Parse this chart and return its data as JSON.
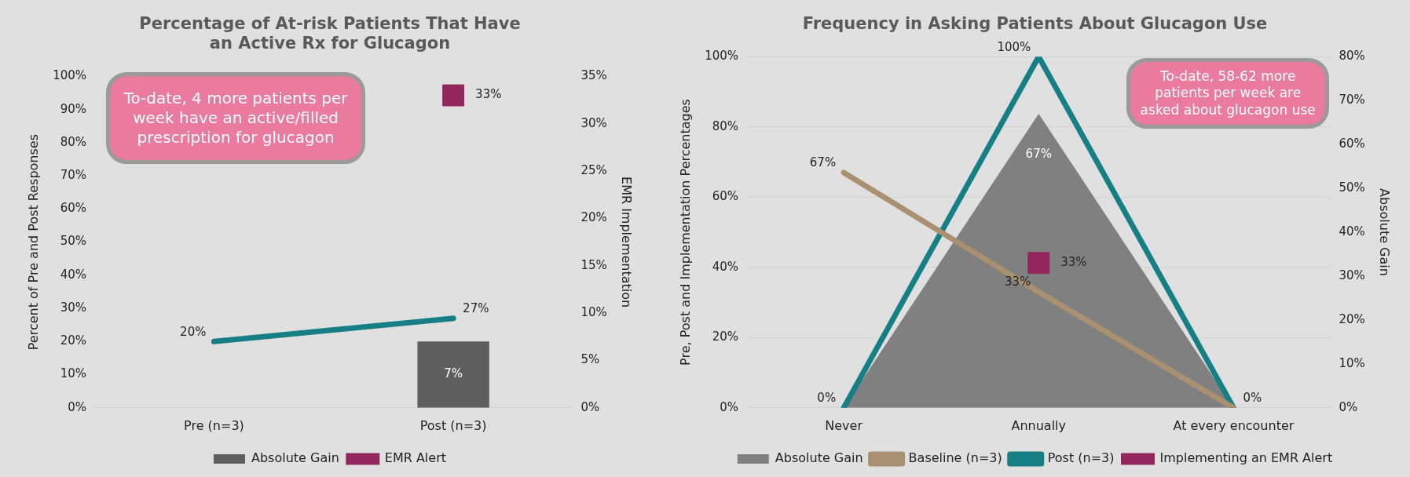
{
  "chart_data": [
    {
      "type": "bar",
      "title": "Percentage of At-risk Patients That Have an Active Rx for Glucagon",
      "ylabel": "Percent of Pre and Post Responses",
      "y2label": "EMR Implementation",
      "categories": [
        "Pre (n=3)",
        "Post (n=3)"
      ],
      "series": [
        {
          "name": "Absolute Gain",
          "axis": "y2",
          "color": "#5f5f5f",
          "values": [
            null,
            7
          ],
          "value_labels": [
            null,
            "7%"
          ]
        },
        {
          "type": "line",
          "color": "#167f86",
          "values": [
            20,
            27
          ],
          "value_labels": [
            "20%",
            "27%"
          ]
        },
        {
          "name": "EMR Alert",
          "type": "scatter",
          "marker": "square",
          "axis": "y2",
          "color": "#93265c",
          "values": [
            null,
            33
          ],
          "value_labels": [
            null,
            "33%"
          ]
        }
      ],
      "ylim": [
        0,
        100
      ],
      "yticks": [
        {
          "value": 0,
          "label": "0%"
        },
        {
          "value": 10,
          "label": "10%"
        },
        {
          "value": 20,
          "label": "20%"
        },
        {
          "value": 30,
          "label": "30%"
        },
        {
          "value": 40,
          "label": "40%"
        },
        {
          "value": 50,
          "label": "50%"
        },
        {
          "value": 60,
          "label": "60%"
        },
        {
          "value": 70,
          "label": "70%"
        },
        {
          "value": 80,
          "label": "80%"
        },
        {
          "value": 90,
          "label": "90%"
        },
        {
          "value": 100,
          "label": "100%"
        }
      ],
      "y2lim": [
        0,
        35
      ],
      "y2ticks": [
        {
          "value": 0,
          "label": "0%"
        },
        {
          "value": 5,
          "label": "5%"
        },
        {
          "value": 10,
          "label": "10%"
        },
        {
          "value": 15,
          "label": "15%"
        },
        {
          "value": 20,
          "label": "20%"
        },
        {
          "value": 25,
          "label": "25%"
        },
        {
          "value": 30,
          "label": "30%"
        },
        {
          "value": 35,
          "label": "35%"
        }
      ],
      "legend": "bottom",
      "annotations": [
        "To-date, 4 more patients per week have an active/filled prescription for glucagon"
      ]
    },
    {
      "type": "line",
      "title": "Frequency in Asking Patients About Glucagon Use",
      "ylabel": "Pre, Post and Implementation Percentages",
      "y2label": "Absolute Gain",
      "categories": [
        "Never",
        "Annually",
        "At every encounter"
      ],
      "series": [
        {
          "name": "Absolute Gain",
          "type": "area",
          "axis": "y2",
          "color": "#808080",
          "values": [
            0,
            67,
            0
          ],
          "value_labels": [
            null,
            "67%",
            null
          ]
        },
        {
          "name": "Baseline (n=3)",
          "color": "#a89070",
          "values": [
            67,
            33,
            0
          ],
          "value_labels": [
            "67%",
            "33%",
            "0%"
          ]
        },
        {
          "name": "Post (n=3)",
          "color": "#167f86",
          "values": [
            0,
            100,
            0
          ],
          "value_labels": [
            "0%",
            "100%",
            null
          ]
        },
        {
          "name": "Implementing an EMR Alert",
          "type": "scatter",
          "marker": "square",
          "axis": "y2",
          "color": "#93265c",
          "values": [
            null,
            33,
            null
          ],
          "value_labels": [
            null,
            "33%",
            null
          ]
        }
      ],
      "ylim": [
        0,
        100
      ],
      "yticks": [
        {
          "value": 0,
          "label": "0%"
        },
        {
          "value": 20,
          "label": "20%"
        },
        {
          "value": 40,
          "label": "40%"
        },
        {
          "value": 60,
          "label": "60%"
        },
        {
          "value": 80,
          "label": "80%"
        },
        {
          "value": 100,
          "label": "100%"
        }
      ],
      "y2lim": [
        0,
        80
      ],
      "y2ticks": [
        {
          "value": 0,
          "label": "0%"
        },
        {
          "value": 10,
          "label": "10%"
        },
        {
          "value": 20,
          "label": "20%"
        },
        {
          "value": 30,
          "label": "30%"
        },
        {
          "value": 40,
          "label": "40%"
        },
        {
          "value": 50,
          "label": "50%"
        },
        {
          "value": 60,
          "label": "60%"
        },
        {
          "value": 70,
          "label": "70%"
        },
        {
          "value": 80,
          "label": "80%"
        }
      ],
      "grid": "y",
      "legend": "bottom",
      "annotations": [
        "To-date, 58-62 more patients per week are asked about glucagon use"
      ]
    }
  ]
}
